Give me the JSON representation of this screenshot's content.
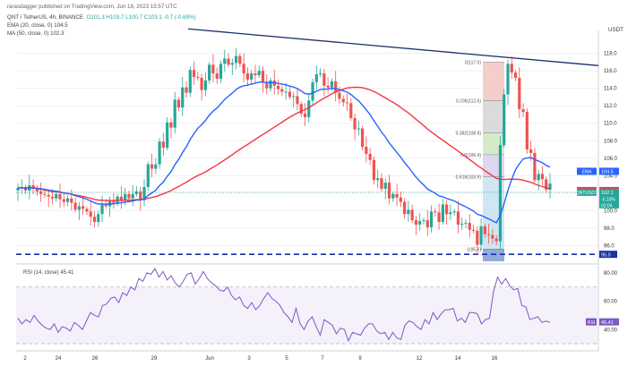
{
  "header": {
    "publisher": "rarasdagger published on TradingView.com, Jun 18, 2023 15:57 UTC",
    "symbol_line": "QNT / TetherUS, 4h, BINANCE",
    "ohlc": "O101.3  H103.7  L100.7  C103.1  -0.7 (-0.69%)",
    "ema_line": "EMA (20, close, 0)  104.5",
    "ma_line": "MA (50, close, 0)  102.3",
    "currency": "USDT"
  },
  "chart_data": [
    {
      "type": "candlestick",
      "interval": "4h",
      "x_labels": [
        "2",
        "24",
        "26",
        "29",
        "Jun",
        "3",
        "5",
        "7",
        "9",
        "12",
        "14",
        "16"
      ],
      "y_ticks": [
        96.0,
        98.0,
        100.0,
        102.0,
        104.0,
        106.0,
        108.0,
        110.0,
        112.0,
        114.0,
        116.0,
        118.0
      ],
      "ylim": [
        94.2,
        119.6
      ],
      "series_approx_close": [
        102.6,
        102.7,
        102.3,
        102.9,
        102.5,
        102.2,
        101.9,
        101.8,
        101.6,
        101.4,
        101.9,
        101.3,
        101.0,
        101.4,
        100.9,
        100.1,
        100.5,
        100.2,
        99.9,
        99.3,
        98.7,
        99.6,
        100.7,
        100.5,
        101.1,
        100.9,
        101.6,
        101.2,
        101.9,
        101.4,
        101.9,
        102.2,
        101.2,
        102.7,
        105.3,
        104.8,
        105.3,
        107.9,
        107.2,
        110.1,
        109.5,
        112.7,
        111.8,
        114.1,
        113.5,
        116.1,
        115.3,
        115.2,
        113.8,
        114.9,
        116.7,
        115.7,
        115.1,
        116.8,
        117.4,
        116.7,
        116.9,
        117.7,
        116.8,
        115.7,
        115.0,
        115.7,
        115.5,
        116.0,
        114.7,
        114.0,
        114.9,
        114.3,
        113.9,
        113.6,
        113.6,
        113.0,
        113.1,
        112.2,
        111.1,
        110.7,
        112.6,
        114.7,
        115.6,
        115.7,
        114.3,
        114.1,
        114.8,
        113.5,
        112.8,
        112.4,
        112.3,
        110.6,
        109.3,
        109.4,
        107.3,
        106.5,
        105.8,
        103.5,
        103.7,
        102.5,
        103.2,
        101.4,
        101.9,
        101.5,
        101.0,
        99.6,
        100.1,
        98.9,
        98.4,
        98.8,
        98.9,
        98.1,
        99.9,
        99.8,
        98.7,
        100.7,
        99.6,
        99.8,
        99.9,
        98.4,
        98.5,
        98.6,
        97.8,
        97.7,
        96.1,
        98.2,
        97.3,
        97.2,
        96.8,
        96.5,
        107.5,
        113.3,
        116.8,
        115.8,
        115.2,
        111.6,
        111.3,
        107.0,
        106.6,
        103.5,
        104.2,
        103.6,
        102.4,
        103.1
      ],
      "ema": {
        "name": "EMA (20, close, 0)",
        "last": 104.5,
        "color": "#2962ff"
      },
      "ma": {
        "name": "MA (50, close, 0)",
        "last": 102.3,
        "color": "#f23645"
      },
      "price_labels": [
        {
          "text": "EMA",
          "value": "104.5",
          "color": "#2962ff"
        },
        {
          "text": "MA",
          "value": "102.3",
          "color": "#f23645"
        },
        {
          "text": "QNTUSDT",
          "value": "102.1",
          "sub": "-0.10%",
          "sub2": "02:04",
          "color": "#26a69a"
        }
      ],
      "support_level": {
        "value": 95.0,
        "label": "95.0",
        "color": "#1a2ea8"
      },
      "trendline_label": "",
      "fibonacci": {
        "levels": [
          {
            "ratio": "0(117.0)",
            "value": 117.0,
            "fill": "#f2c4c4"
          },
          {
            "ratio": "0.236(112.6)",
            "value": 112.6,
            "fill": "#d5d5d5"
          },
          {
            "ratio": "0.382(108.9)",
            "value": 108.9,
            "fill": "#cde8c0"
          },
          {
            "ratio": "0.5(106.4)",
            "value": 106.4,
            "fill": "#d8d0ec"
          },
          {
            "ratio": "0.618(103.9)",
            "value": 103.9,
            "fill": "#c6e3f0"
          },
          {
            "ratio": "1(95.6)",
            "value": 95.6,
            "fill": "#bcd5ee"
          }
        ]
      },
      "grid": true
    },
    {
      "type": "line",
      "title": "RSI (14, close)",
      "last": 45.41,
      "color": "#7e57c2",
      "y_ticks": [
        40.0,
        60.0,
        80.0
      ],
      "ylim": [
        25,
        85
      ],
      "bands": [
        30,
        70
      ],
      "values": [
        48,
        44,
        47,
        45,
        50,
        46,
        43,
        41,
        40,
        44,
        38,
        42,
        41,
        39,
        45,
        43,
        40,
        46,
        52,
        50,
        49,
        57,
        58,
        62,
        63,
        59,
        66,
        64,
        70,
        68,
        76,
        74,
        80,
        79,
        83,
        77,
        81,
        75,
        78,
        73,
        70,
        74,
        79,
        80,
        72,
        76,
        81,
        76,
        73,
        71,
        68,
        67,
        70,
        64,
        61,
        63,
        57,
        55,
        59,
        54,
        57,
        62,
        66,
        62,
        60,
        57,
        52,
        49,
        45,
        55,
        44,
        40,
        46,
        49,
        42,
        36,
        47,
        45,
        43,
        37,
        41,
        40,
        32,
        38,
        37,
        36,
        41,
        44,
        44,
        39,
        37,
        38,
        33,
        38,
        34,
        33,
        43,
        46,
        45,
        42,
        40,
        47,
        44,
        52,
        47,
        51,
        54,
        54,
        55,
        46,
        48,
        45,
        52,
        52,
        51,
        44,
        47,
        48,
        67,
        77,
        72,
        76,
        71,
        68,
        69,
        57,
        56,
        47,
        48,
        49,
        45,
        46,
        45
      ],
      "price_label": {
        "text": "RSI",
        "value": "45.41"
      }
    }
  ],
  "watermark": ""
}
